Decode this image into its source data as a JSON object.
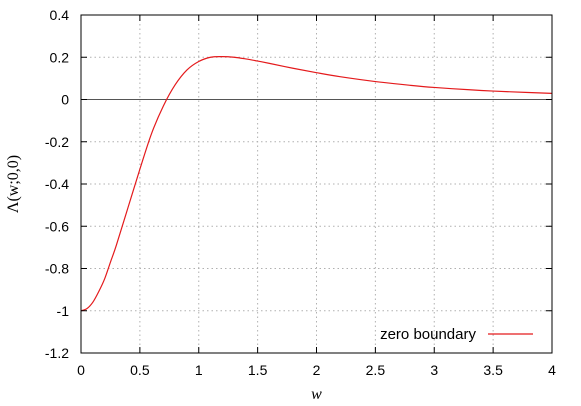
{
  "chart_data": {
    "type": "line",
    "xlabel": "w",
    "ylabel": "Λ(w;0,0)",
    "xlim": [
      0,
      4
    ],
    "ylim": [
      -1.2,
      0.4
    ],
    "x_ticks": [
      0,
      0.5,
      1,
      1.5,
      2,
      2.5,
      3,
      3.5,
      4
    ],
    "x_tick_labels": [
      "0",
      "0.5",
      "1",
      "1.5",
      "2",
      "2.5",
      "3",
      "3.5",
      "4"
    ],
    "y_ticks": [
      0.4,
      0.2,
      0,
      -0.2,
      -0.4,
      -0.6,
      -0.8,
      -1,
      -1.2
    ],
    "y_tick_labels": [
      "0.4",
      "0.2",
      "0",
      "-0.2",
      "-0.4",
      "-0.6",
      "-0.8",
      "-1",
      "-1.2"
    ],
    "grid": true,
    "zero_line": true,
    "legend_position": "bottom-right",
    "series": [
      {
        "name": "zero boundary",
        "color": "#e41a1c",
        "x": [
          0,
          0.05,
          0.1,
          0.15,
          0.2,
          0.25,
          0.3,
          0.4,
          0.5,
          0.6,
          0.7,
          0.8,
          0.9,
          1.0,
          1.1,
          1.2,
          1.3,
          1.4,
          1.5,
          1.6,
          1.8,
          2.0,
          2.2,
          2.5,
          2.8,
          3.0,
          3.3,
          3.5,
          3.8,
          4.0
        ],
        "y": [
          -1.0,
          -0.99,
          -0.96,
          -0.91,
          -0.85,
          -0.77,
          -0.69,
          -0.51,
          -0.33,
          -0.16,
          -0.03,
          0.07,
          0.14,
          0.18,
          0.2,
          0.203,
          0.2,
          0.192,
          0.182,
          0.171,
          0.148,
          0.127,
          0.108,
          0.085,
          0.067,
          0.057,
          0.046,
          0.04,
          0.033,
          0.029
        ]
      }
    ]
  }
}
